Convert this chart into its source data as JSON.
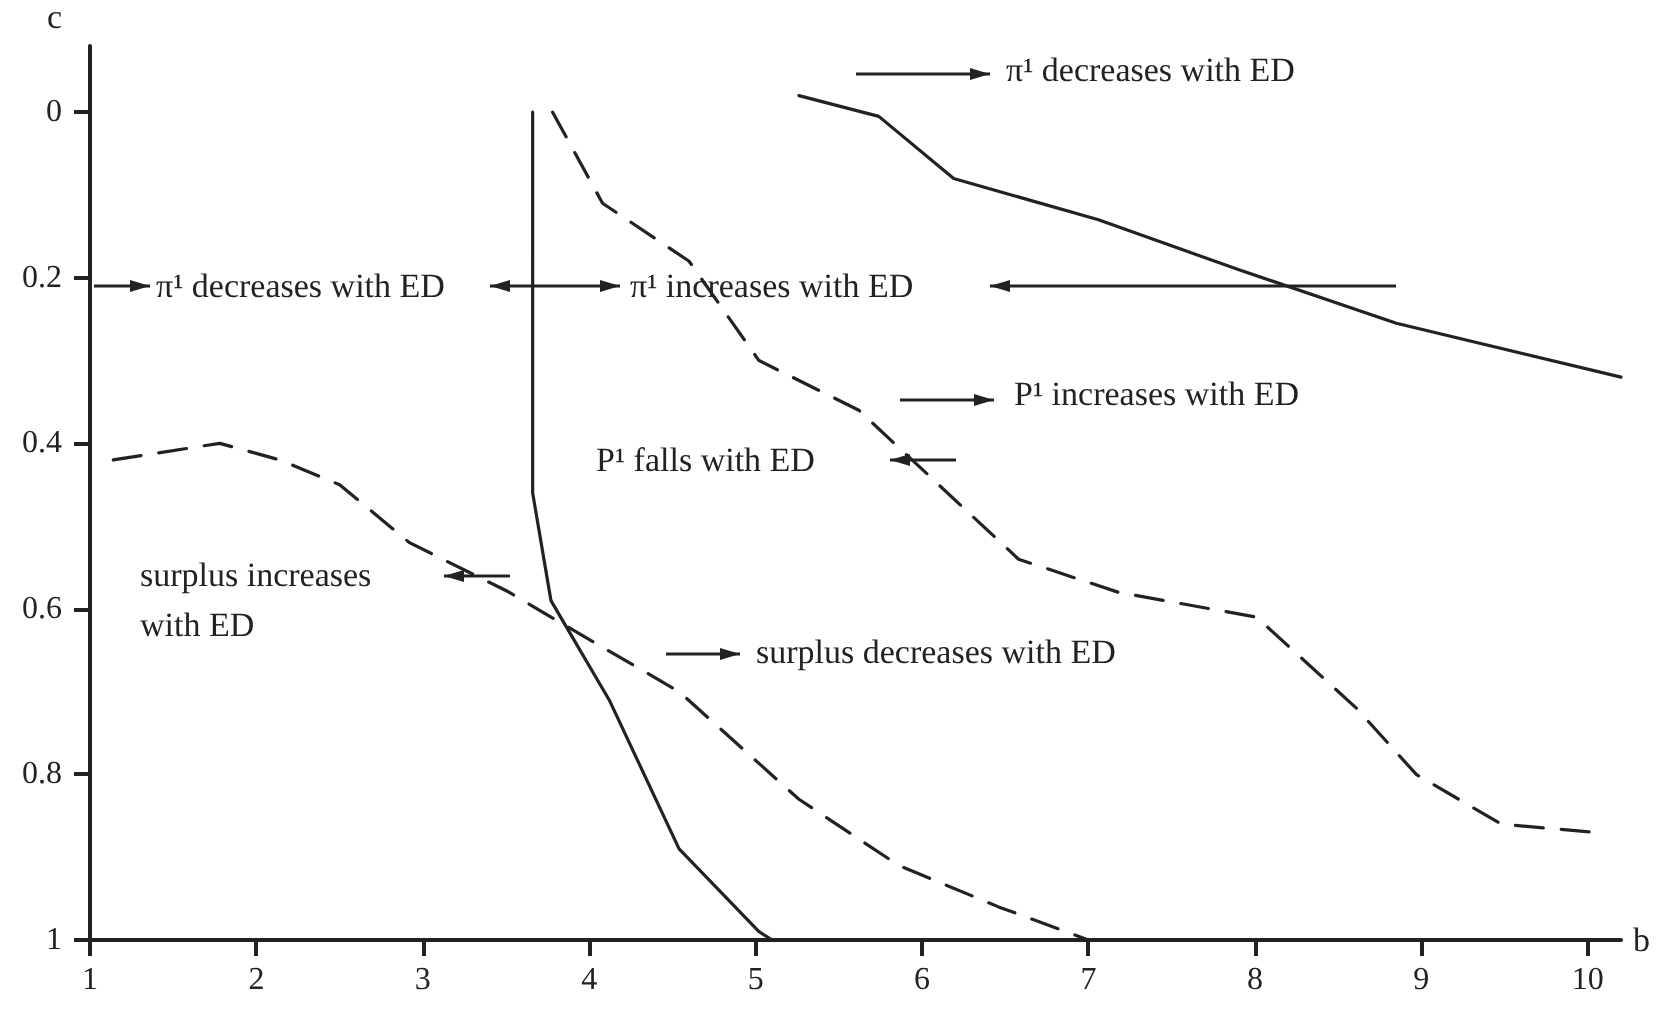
{
  "chart_data": {
    "type": "line",
    "xlabel": "b",
    "ylabel": "c",
    "xlim": [
      1,
      10.2
    ],
    "xticks": [
      1,
      2,
      3,
      4,
      5,
      6,
      7,
      8,
      9,
      10
    ],
    "ylim": [
      1,
      -0.08
    ],
    "yticks": [
      0,
      0.2,
      0.4,
      0.6,
      0.8,
      1
    ],
    "grid": false,
    "marker": "none",
    "series": [
      {
        "color": "#222222",
        "line_style": "solid",
        "x": [
          5.26,
          5.74,
          6.19,
          7.06,
          7.9,
          8.85,
          10.2
        ],
        "values": [
          -0.02,
          0.005,
          0.08,
          0.13,
          0.19,
          0.255,
          0.32
        ]
      },
      {
        "color": "#222222",
        "line_style": "solid",
        "x": [
          3.66,
          3.66,
          3.77,
          4.12,
          4.54,
          5.02,
          5.1
        ],
        "values": [
          0,
          0.46,
          0.59,
          0.71,
          0.89,
          0.99,
          1.0
        ]
      },
      {
        "color": "#222222",
        "line_style": "dashed",
        "x": [
          3.78,
          4.08,
          4.6,
          5.02,
          5.62,
          6.1,
          6.58,
          7.18,
          8.01,
          8.61,
          8.97,
          9.48,
          10.05
        ],
        "values": [
          0,
          0.11,
          0.18,
          0.3,
          0.36,
          0.45,
          0.54,
          0.58,
          0.61,
          0.72,
          0.8,
          0.86,
          0.87
        ]
      },
      {
        "color": "#222222",
        "line_style": "dashed",
        "x": [
          1.14,
          1.78,
          2.14,
          2.5,
          2.92,
          3.52,
          3.94,
          4.54,
          5.26,
          5.86,
          6.46,
          7.0
        ],
        "values": [
          0.42,
          0.4,
          0.42,
          0.45,
          0.52,
          0.58,
          0.63,
          0.7,
          0.83,
          0.91,
          0.96,
          1.0
        ]
      }
    ],
    "annotations": [
      "π¹ decreases with ED",
      "π¹ decreases with ED",
      "π¹ increases with ED",
      "P¹ increases with ED",
      "P¹ falls with ED",
      "surplus increases with ED",
      "surplus decreases with ED"
    ]
  }
}
